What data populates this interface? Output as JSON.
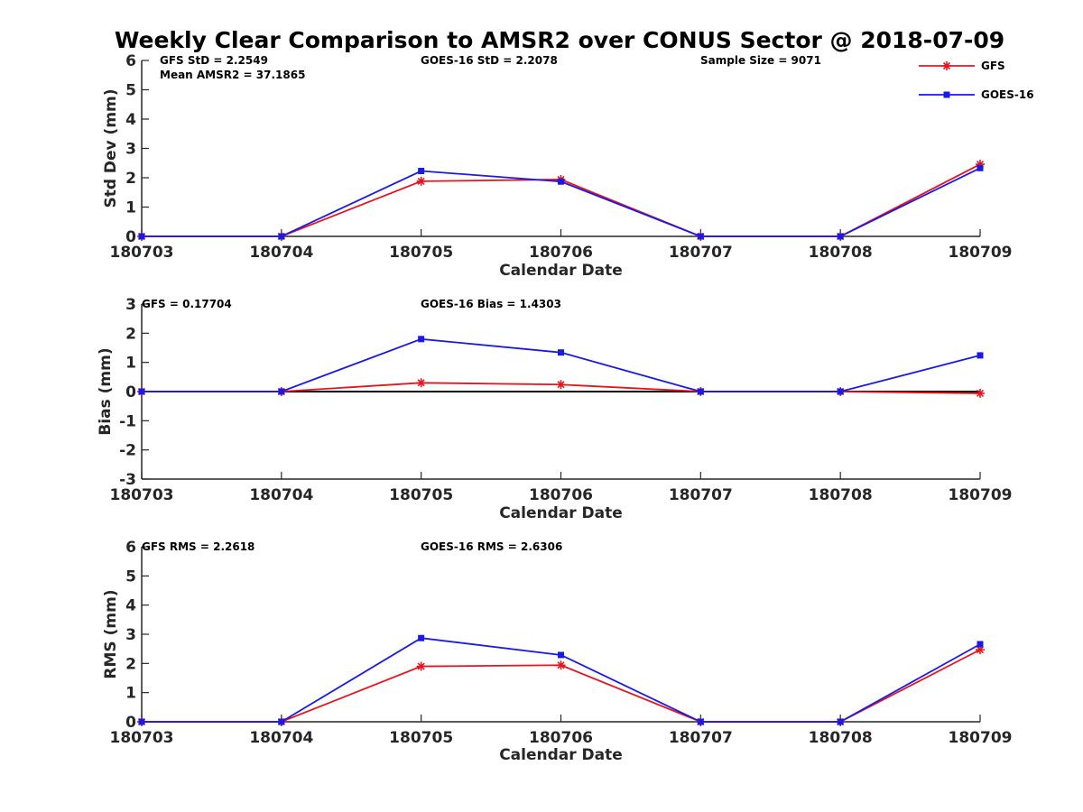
{
  "title": "Weekly Clear Comparison to AMSR2 over CONUS Sector @ 2018-07-09",
  "legend": {
    "placement": "top-right",
    "entries": [
      {
        "name": "GFS",
        "color": "#e8141e",
        "marker": "asterisk"
      },
      {
        "name": "GOES-16",
        "color": "#1a1ae6",
        "marker": "square"
      }
    ]
  },
  "colors": {
    "gfs": "#e8141e",
    "goes": "#1a1ae6",
    "axis": "#262626",
    "zero_line": "#000000"
  },
  "chart_data": [
    {
      "type": "line",
      "xlabel": "Calendar Date",
      "ylabel": "Std Dev (mm)",
      "categories": [
        "180703",
        "180704",
        "180705",
        "180706",
        "180707",
        "180708",
        "180709"
      ],
      "ylim": [
        0,
        6
      ],
      "yticks": [
        "0",
        "1",
        "2",
        "3",
        "4",
        "5",
        "6"
      ],
      "zero_line": false,
      "series": [
        {
          "name": "GFS",
          "values": [
            0,
            0,
            1.88,
            1.94,
            0,
            0,
            2.46
          ]
        },
        {
          "name": "GOES-16",
          "values": [
            0,
            0,
            2.23,
            1.87,
            0,
            0,
            2.33
          ]
        }
      ],
      "annotations": [
        "GFS StD = 2.2549",
        "Mean AMSR2 = 37.1865",
        "GOES-16 StD = 2.2078",
        "Sample Size = 9071"
      ]
    },
    {
      "type": "line",
      "xlabel": "Calendar Date",
      "ylabel": "Bias (mm)",
      "categories": [
        "180703",
        "180704",
        "180705",
        "180706",
        "180707",
        "180708",
        "180709"
      ],
      "ylim": [
        -3,
        3
      ],
      "yticks": [
        "-3",
        "-2",
        "-1",
        "0",
        "1",
        "2",
        "3"
      ],
      "zero_line": true,
      "series": [
        {
          "name": "GFS",
          "values": [
            0,
            0,
            0.3,
            0.24,
            0,
            0,
            -0.06
          ]
        },
        {
          "name": "GOES-16",
          "values": [
            0,
            0,
            1.8,
            1.34,
            0,
            0,
            1.24
          ]
        }
      ],
      "annotations": [
        "GFS = 0.17704",
        "GOES-16 Bias  = 1.4303"
      ]
    },
    {
      "type": "line",
      "xlabel": "Calendar Date",
      "ylabel": "RMS (mm)",
      "categories": [
        "180703",
        "180704",
        "180705",
        "180706",
        "180707",
        "180708",
        "180709"
      ],
      "ylim": [
        0,
        6
      ],
      "yticks": [
        "0",
        "1",
        "2",
        "3",
        "4",
        "5",
        "6"
      ],
      "zero_line": false,
      "series": [
        {
          "name": "GFS",
          "values": [
            0,
            0,
            1.9,
            1.94,
            0,
            0,
            2.47
          ]
        },
        {
          "name": "GOES-16",
          "values": [
            0,
            0,
            2.87,
            2.29,
            0,
            0,
            2.66
          ]
        }
      ],
      "annotations": [
        "GFS RMS = 2.2618",
        "GOES-16 RMS = 2.6306"
      ]
    }
  ]
}
